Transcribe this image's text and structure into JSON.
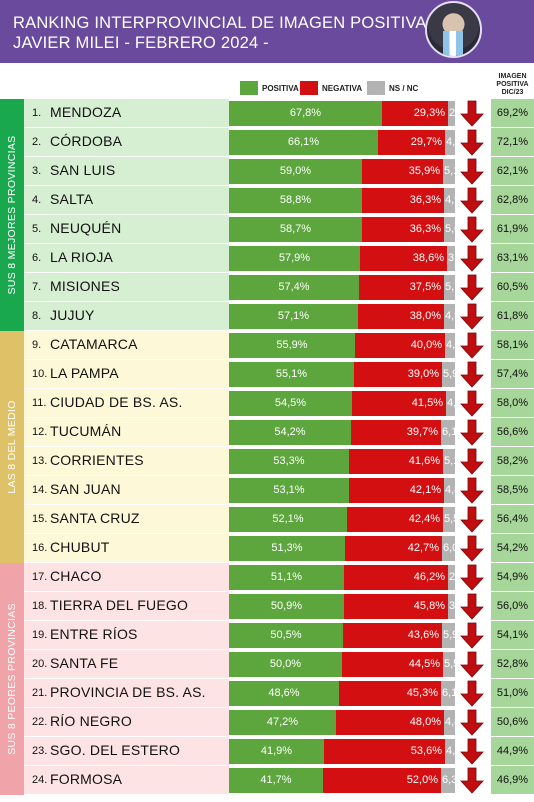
{
  "header": {
    "title_line1": "RANKING INTERPROVINCIAL DE IMAGEN POSITIVA",
    "title_line2": "JAVIER MILEI - FEBRERO 2024 -"
  },
  "legend": {
    "positive": "POSITIVA",
    "negative": "NEGATIVA",
    "ns_nc": "NS / NC"
  },
  "previous_header": [
    "IMAGEN",
    "POSITIVA",
    "DIC/23"
  ],
  "groups": [
    {
      "label": "SUS 8 MEJORES PROVINCIAS",
      "color": "#1aa84f",
      "row_color": "#d6efd2",
      "start": 0,
      "count": 8
    },
    {
      "label": "LAS 8 DEL MEDIO",
      "color": "#dfc268",
      "row_color": "#fdf8d8",
      "start": 8,
      "count": 8
    },
    {
      "label": "SUS 8 PEORES PROVINCIAS",
      "color": "#f0a3a8",
      "row_color": "#fde3e3",
      "start": 16,
      "count": 8
    }
  ],
  "colors": {
    "positive": "#5da63d",
    "negative": "#d40f11",
    "ns_nc": "#b3b3b3",
    "arrow": "#c00d10",
    "header_bg": "#6a4a9c"
  },
  "chart_data": {
    "type": "bar",
    "stacked": true,
    "orientation": "horizontal",
    "title": "RANKING INTERPROVINCIAL DE IMAGEN POSITIVA JAVIER MILEI - FEBRERO 2024 -",
    "categories": [
      "MENDOZA",
      "CÓRDOBA",
      "SAN LUIS",
      "SALTA",
      "NEUQUÉN",
      "LA RIOJA",
      "MISIONES",
      "JUJUY",
      "CATAMARCA",
      "LA PAMPA",
      "CIUDAD DE BS. AS.",
      "TUCUMÁN",
      "CORRIENTES",
      "SAN JUAN",
      "SANTA CRUZ",
      "CHUBUT",
      "CHACO",
      "TIERRA DEL FUEGO",
      "ENTRE RÍOS",
      "SANTA FE",
      "PROVINCIA DE BS. AS.",
      "RÍO NEGRO",
      "SGO. DEL ESTERO",
      "FORMOSA"
    ],
    "ranks": [
      "1.",
      "2.",
      "3.",
      "4.",
      "5.",
      "6.",
      "7.",
      "8.",
      "9.",
      "10.",
      "11.",
      "12.",
      "13.",
      "14.",
      "15.",
      "16.",
      "17.",
      "18.",
      "19.",
      "20.",
      "21.",
      "22.",
      "23.",
      "24."
    ],
    "series": [
      {
        "name": "POSITIVA",
        "values": [
          67.8,
          66.1,
          59.0,
          58.8,
          58.7,
          57.9,
          57.4,
          57.1,
          55.9,
          55.1,
          54.5,
          54.2,
          53.3,
          53.1,
          52.1,
          51.3,
          51.1,
          50.9,
          50.5,
          50.0,
          48.6,
          47.2,
          41.9,
          41.7
        ]
      },
      {
        "name": "NEGATIVA",
        "values": [
          29.3,
          29.7,
          35.9,
          36.3,
          36.3,
          38.6,
          37.5,
          38.0,
          40.0,
          39.0,
          41.5,
          39.7,
          41.6,
          42.1,
          42.4,
          42.7,
          46.2,
          45.8,
          43.6,
          44.5,
          45.3,
          48.0,
          53.6,
          52.0
        ]
      },
      {
        "name": "NS / NC",
        "values": [
          2.9,
          4.2,
          5.1,
          4.9,
          5.0,
          3.5,
          5.1,
          4.9,
          4.1,
          5.9,
          4.0,
          6.1,
          5.1,
          4.8,
          5.5,
          6.0,
          2.7,
          3.3,
          5.9,
          5.5,
          6.1,
          4.8,
          4.5,
          6.3
        ]
      }
    ],
    "display_labels": {
      "positive": [
        "67,8%",
        "66,1%",
        "59,0%",
        "58,8%",
        "58,7%",
        "57,9%",
        "57,4%",
        "57,1%",
        "55,9%",
        "55,1%",
        "54,5%",
        "54,2%",
        "53,3%",
        "53,1%",
        "52,1%",
        "51,3%",
        "51,1%",
        "50,9%",
        "50,5%",
        "50,0%",
        "48,6%",
        "47,2%",
        "41,9%",
        "41,7%"
      ],
      "negative": [
        "29,3%",
        "29,7%",
        "35,9%",
        "36,3%",
        "36,3%",
        "38,6%",
        "37,5%",
        "38,0%",
        "40,0%",
        "39,0%",
        "41,5%",
        "39,7%",
        "41,6%",
        "42,1%",
        "42,4%",
        "42,7%",
        "46,2%",
        "45,8%",
        "43,6%",
        "44,5%",
        "45,3%",
        "48,0%",
        "53,6%",
        "52,0%"
      ],
      "ns_nc": [
        "2,9",
        "4,2",
        "5,1",
        "4,9",
        "5,0",
        "3,5",
        "5,1",
        "4,9",
        "4,1",
        "5,9",
        "4,0",
        "6,1",
        "5,1",
        "4,8",
        "5,5",
        "6,0",
        "2,7",
        "3,3",
        "5,9",
        "5,5",
        "6,1",
        "4,8",
        "4,5",
        "6,3"
      ]
    },
    "previous_positive_dic23": {
      "values": [
        69.2,
        72.1,
        62.1,
        62.8,
        61.9,
        63.1,
        60.5,
        61.8,
        58.1,
        57.4,
        58.0,
        56.6,
        58.2,
        58.5,
        56.4,
        54.2,
        54.9,
        56.0,
        54.1,
        52.8,
        51.0,
        50.6,
        44.9,
        46.9
      ],
      "labels": [
        "69,2%",
        "72,1%",
        "62,1%",
        "62,8%",
        "61,9%",
        "63,1%",
        "60,5%",
        "61,8%",
        "58,1%",
        "57,4%",
        "58,0%",
        "56,6%",
        "58,2%",
        "58,5%",
        "56,4%",
        "54,2%",
        "54,9%",
        "56,0%",
        "54,1%",
        "52,8%",
        "51,0%",
        "50,6%",
        "44,9%",
        "46,9%"
      ]
    },
    "trend": "down",
    "xlim": [
      0,
      100
    ],
    "legend_position": "top"
  }
}
